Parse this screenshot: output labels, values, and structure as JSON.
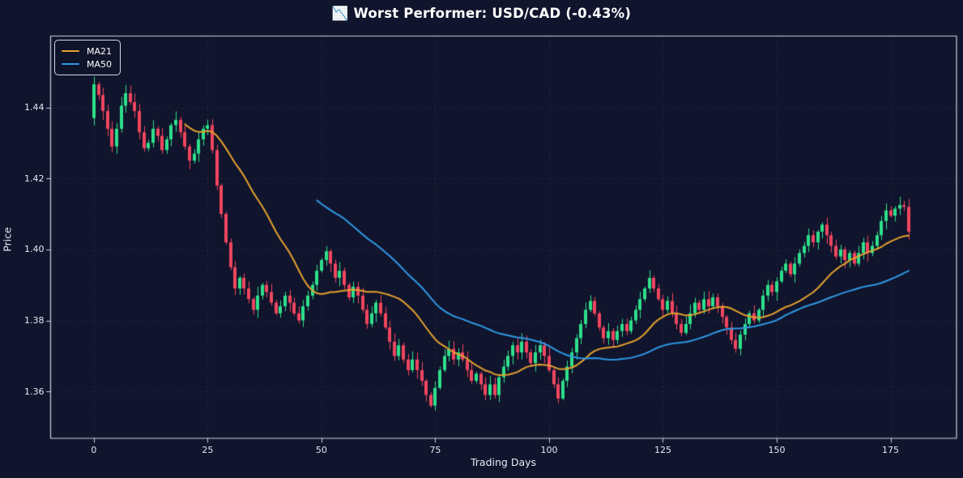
{
  "title": "📉 Worst Performer: USD/CAD (-0.43%)",
  "chart_data": {
    "type": "candlestick",
    "title": "📉 Worst Performer: USD/CAD (-0.43%)",
    "xlabel": "Trading Days",
    "ylabel": "Price",
    "x_ticks": [
      0,
      25,
      50,
      75,
      100,
      125,
      150,
      175
    ],
    "y_ticks": [
      {
        "value": 1.36,
        "label": "1.36"
      },
      {
        "value": 1.38,
        "label": "1.38"
      },
      {
        "value": 1.4,
        "label": "1.40"
      },
      {
        "value": 1.42,
        "label": "1.42"
      },
      {
        "value": 1.44,
        "label": "1.44"
      }
    ],
    "xlim": [
      -9.5,
      189.5
    ],
    "ylim": [
      1.3468,
      1.4601
    ],
    "grid": true,
    "legend_position": "upper-left",
    "first_open": 1.437,
    "closes": [
      1.4465,
      1.4435,
      1.439,
      1.434,
      1.429,
      1.434,
      1.4405,
      1.444,
      1.4415,
      1.439,
      1.433,
      1.4285,
      1.43,
      1.434,
      1.432,
      1.428,
      1.431,
      1.435,
      1.4365,
      1.433,
      1.429,
      1.425,
      1.427,
      1.431,
      1.434,
      1.435,
      1.428,
      1.418,
      1.41,
      1.402,
      1.395,
      1.389,
      1.392,
      1.389,
      1.386,
      1.383,
      1.387,
      1.39,
      1.388,
      1.385,
      1.382,
      1.384,
      1.387,
      1.385,
      1.382,
      1.38,
      1.384,
      1.387,
      1.39,
      1.394,
      1.397,
      1.3995,
      1.396,
      1.392,
      1.394,
      1.39,
      1.3865,
      1.3895,
      1.387,
      1.383,
      1.379,
      1.382,
      1.385,
      1.382,
      1.378,
      1.374,
      1.37,
      1.373,
      1.369,
      1.366,
      1.369,
      1.366,
      1.363,
      1.359,
      1.356,
      1.361,
      1.366,
      1.37,
      1.372,
      1.369,
      1.371,
      1.369,
      1.366,
      1.363,
      1.365,
      1.362,
      1.359,
      1.362,
      1.359,
      1.364,
      1.367,
      1.37,
      1.373,
      1.371,
      1.374,
      1.371,
      1.368,
      1.371,
      1.373,
      1.37,
      1.366,
      1.362,
      1.358,
      1.363,
      1.367,
      1.371,
      1.375,
      1.379,
      1.383,
      1.3855,
      1.382,
      1.378,
      1.375,
      1.377,
      1.3745,
      1.377,
      1.379,
      1.377,
      1.38,
      1.383,
      1.386,
      1.389,
      1.392,
      1.389,
      1.386,
      1.383,
      1.3855,
      1.382,
      1.379,
      1.3765,
      1.379,
      1.382,
      1.385,
      1.383,
      1.386,
      1.384,
      1.3865,
      1.384,
      1.381,
      1.378,
      1.3745,
      1.372,
      1.376,
      1.379,
      1.382,
      1.38,
      1.383,
      1.387,
      1.39,
      1.388,
      1.391,
      1.394,
      1.396,
      1.393,
      1.396,
      1.399,
      1.401,
      1.404,
      1.402,
      1.405,
      1.407,
      1.404,
      1.401,
      1.398,
      1.4,
      1.397,
      1.399,
      1.396,
      1.399,
      1.402,
      1.399,
      1.401,
      1.404,
      1.408,
      1.411,
      1.4095,
      1.4115,
      1.4125,
      1.412,
      1.405
    ],
    "series": [
      {
        "name": "MA21",
        "window": 21,
        "color": "#e3a12f"
      },
      {
        "name": "MA50",
        "window": 50,
        "color": "#2f99e6"
      }
    ],
    "colors": {
      "up": "#2ee08a",
      "down": "#f0465f",
      "background": "#10142c",
      "grid": "#9aa4d4",
      "spine": "#cdd1e4",
      "text": "#e8e9f2"
    }
  },
  "legend": {
    "items": [
      {
        "label": "MA21"
      },
      {
        "label": "MA50"
      }
    ]
  }
}
